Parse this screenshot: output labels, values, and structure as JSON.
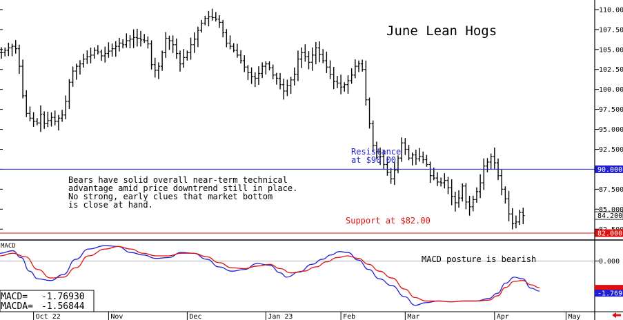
{
  "chart_data": [
    {
      "type": "ohlc",
      "title": "June Lean Hogs",
      "y_ticks": [
        "110.000",
        "107.500",
        "105.000",
        "102.500",
        "100.000",
        "97.500",
        "95.000",
        "92.500",
        "90.000",
        "87.500",
        "85.000",
        "82.500"
      ],
      "ylim": [
        81.4,
        111.2
      ],
      "last_price": 84.2,
      "last_price_label": "84.200",
      "resistance": {
        "value": 90.0,
        "label": "90.000",
        "text": [
          "Resistance",
          "at $90.00"
        ],
        "color": "#1f1fd6"
      },
      "support": {
        "value": 82.0,
        "label": "82.000",
        "text": "Support at $82.00",
        "color": "#e01010"
      },
      "note": [
        "Bears have solid overall near-term technical",
        "advantage amid price downtrend still in place.",
        "No strong, early clues that market bottom",
        "is close at hand."
      ],
      "x_labels": [
        "Oct 22",
        "Nov",
        "Dec",
        "Jan 23",
        "Feb",
        "Mar",
        "Apr",
        "May"
      ],
      "x_label_bars": [
        9,
        30,
        52,
        74,
        95,
        113,
        138,
        158
      ],
      "closes": [
        104.6,
        104.9,
        105.2,
        105.4,
        105.1,
        102.9,
        99.2,
        97.0,
        96.4,
        96.0,
        95.8,
        96.9,
        95.7,
        96.1,
        96.5,
        96.0,
        96.4,
        96.8,
        98.5,
        100.9,
        102.3,
        102.9,
        103.2,
        103.8,
        104.1,
        104.3,
        104.9,
        104.7,
        104.2,
        104.5,
        104.8,
        105.1,
        105.4,
        105.8,
        105.6,
        106.1,
        106.3,
        106.5,
        106.4,
        106.2,
        106.1,
        105.7,
        103.1,
        102.4,
        102.9,
        104.6,
        106.4,
        106.1,
        105.6,
        104.5,
        103.2,
        104.0,
        104.6,
        105.6,
        106.3,
        107.4,
        108.3,
        108.9,
        109.1,
        109.0,
        108.8,
        108.4,
        107.1,
        105.8,
        105.4,
        104.9,
        104.3,
        103.6,
        102.8,
        102.1,
        101.6,
        101.4,
        102.0,
        102.9,
        103.2,
        102.7,
        101.8,
        101.4,
        100.6,
        99.8,
        100.5,
        101.2,
        101.9,
        103.8,
        104.6,
        104.1,
        103.4,
        104.3,
        105.2,
        104.4,
        103.6,
        102.8,
        101.9,
        101.0,
        100.8,
        100.3,
        100.6,
        101.1,
        101.8,
        102.9,
        103.2,
        102.5,
        98.7,
        95.7,
        93.0,
        92.2,
        91.6,
        90.6,
        89.6,
        88.8,
        89.9,
        91.4,
        93.3,
        92.5,
        91.4,
        91.8,
        91.3,
        91.6,
        91.2,
        90.6,
        89.2,
        88.9,
        88.4,
        88.3,
        88.6,
        87.7,
        86.6,
        85.8,
        86.4,
        87.9,
        85.9,
        85.3,
        86.2,
        87.2,
        88.3,
        90.4,
        90.9,
        91.6,
        90.8,
        89.2,
        87.5,
        86.3,
        84.4,
        83.2,
        83.4,
        84.6,
        84.2
      ],
      "macd_label": "MACD",
      "macd_zero_label": "0.000",
      "macd_tag_label": "1.769",
      "macd_ylim": [
        -2.9,
        1.15
      ],
      "macd_readout": {
        "macd_name": "MACD=",
        "macd_value": "-1.76930",
        "macda_name": "MACDA=",
        "macda_value": "-1.56844"
      },
      "macd_note": "MACD posture is bearish",
      "macd_series": [
        {
          "name": "MACD",
          "color": "#1f1fd6",
          "points": [
            [
              0,
              0.45
            ],
            [
              6,
              0.6
            ],
            [
              10,
              0.2
            ],
            [
              14,
              -0.6
            ],
            [
              18,
              -1.05
            ],
            [
              24,
              -1.15
            ],
            [
              30,
              -0.8
            ],
            [
              36,
              0.1
            ],
            [
              42,
              0.7
            ],
            [
              50,
              0.9
            ],
            [
              56,
              0.85
            ],
            [
              62,
              0.5
            ],
            [
              68,
              0.35
            ],
            [
              74,
              0.15
            ],
            [
              80,
              0.2
            ],
            [
              86,
              0.5
            ],
            [
              92,
              0.45
            ],
            [
              98,
              0.1
            ],
            [
              104,
              -0.35
            ],
            [
              110,
              -0.6
            ],
            [
              116,
              -0.5
            ],
            [
              122,
              -0.15
            ],
            [
              128,
              -0.25
            ],
            [
              133,
              -0.7
            ],
            [
              136,
              -0.95
            ],
            [
              142,
              -0.65
            ],
            [
              148,
              -0.2
            ],
            [
              153,
              0.1
            ],
            [
              157,
              0.35
            ],
            [
              161,
              0.55
            ],
            [
              165,
              0.5
            ],
            [
              170,
              0.05
            ],
            [
              175,
              -0.5
            ],
            [
              180,
              -1.05
            ],
            [
              186,
              -1.45
            ],
            [
              192,
              -2.1
            ],
            [
              197,
              -2.6
            ],
            [
              202,
              -2.45
            ],
            [
              208,
              -2.35
            ],
            [
              214,
              -2.4
            ],
            [
              220,
              -2.35
            ],
            [
              226,
              -2.35
            ],
            [
              232,
              -2.2
            ],
            [
              236,
              -1.9
            ],
            [
              240,
              -1.3
            ],
            [
              244,
              -0.95
            ],
            [
              248,
              -1.05
            ],
            [
              252,
              -1.6
            ],
            [
              256,
              -1.769
            ]
          ]
        },
        {
          "name": "MACDA",
          "color": "#e01010",
          "points": [
            [
              0,
              0.3
            ],
            [
              6,
              0.45
            ],
            [
              12,
              0.25
            ],
            [
              18,
              -0.5
            ],
            [
              24,
              -1.0
            ],
            [
              30,
              -0.95
            ],
            [
              36,
              -0.4
            ],
            [
              42,
              0.3
            ],
            [
              50,
              0.7
            ],
            [
              56,
              0.85
            ],
            [
              62,
              0.7
            ],
            [
              68,
              0.45
            ],
            [
              74,
              0.3
            ],
            [
              80,
              0.3
            ],
            [
              86,
              0.45
            ],
            [
              92,
              0.45
            ],
            [
              98,
              0.25
            ],
            [
              104,
              -0.1
            ],
            [
              110,
              -0.4
            ],
            [
              116,
              -0.45
            ],
            [
              122,
              -0.3
            ],
            [
              128,
              -0.2
            ],
            [
              133,
              -0.45
            ],
            [
              138,
              -0.7
            ],
            [
              144,
              -0.6
            ],
            [
              150,
              -0.35
            ],
            [
              155,
              -0.05
            ],
            [
              160,
              0.2
            ],
            [
              165,
              0.3
            ],
            [
              170,
              0.15
            ],
            [
              175,
              -0.2
            ],
            [
              180,
              -0.6
            ],
            [
              186,
              -1.0
            ],
            [
              192,
              -1.65
            ],
            [
              197,
              -2.15
            ],
            [
              202,
              -2.35
            ],
            [
              208,
              -2.35
            ],
            [
              214,
              -2.4
            ],
            [
              220,
              -2.35
            ],
            [
              226,
              -2.35
            ],
            [
              232,
              -2.3
            ],
            [
              236,
              -2.05
            ],
            [
              240,
              -1.55
            ],
            [
              244,
              -1.2
            ],
            [
              248,
              -1.15
            ],
            [
              252,
              -1.4
            ],
            [
              256,
              -1.568
            ]
          ]
        }
      ]
    }
  ]
}
